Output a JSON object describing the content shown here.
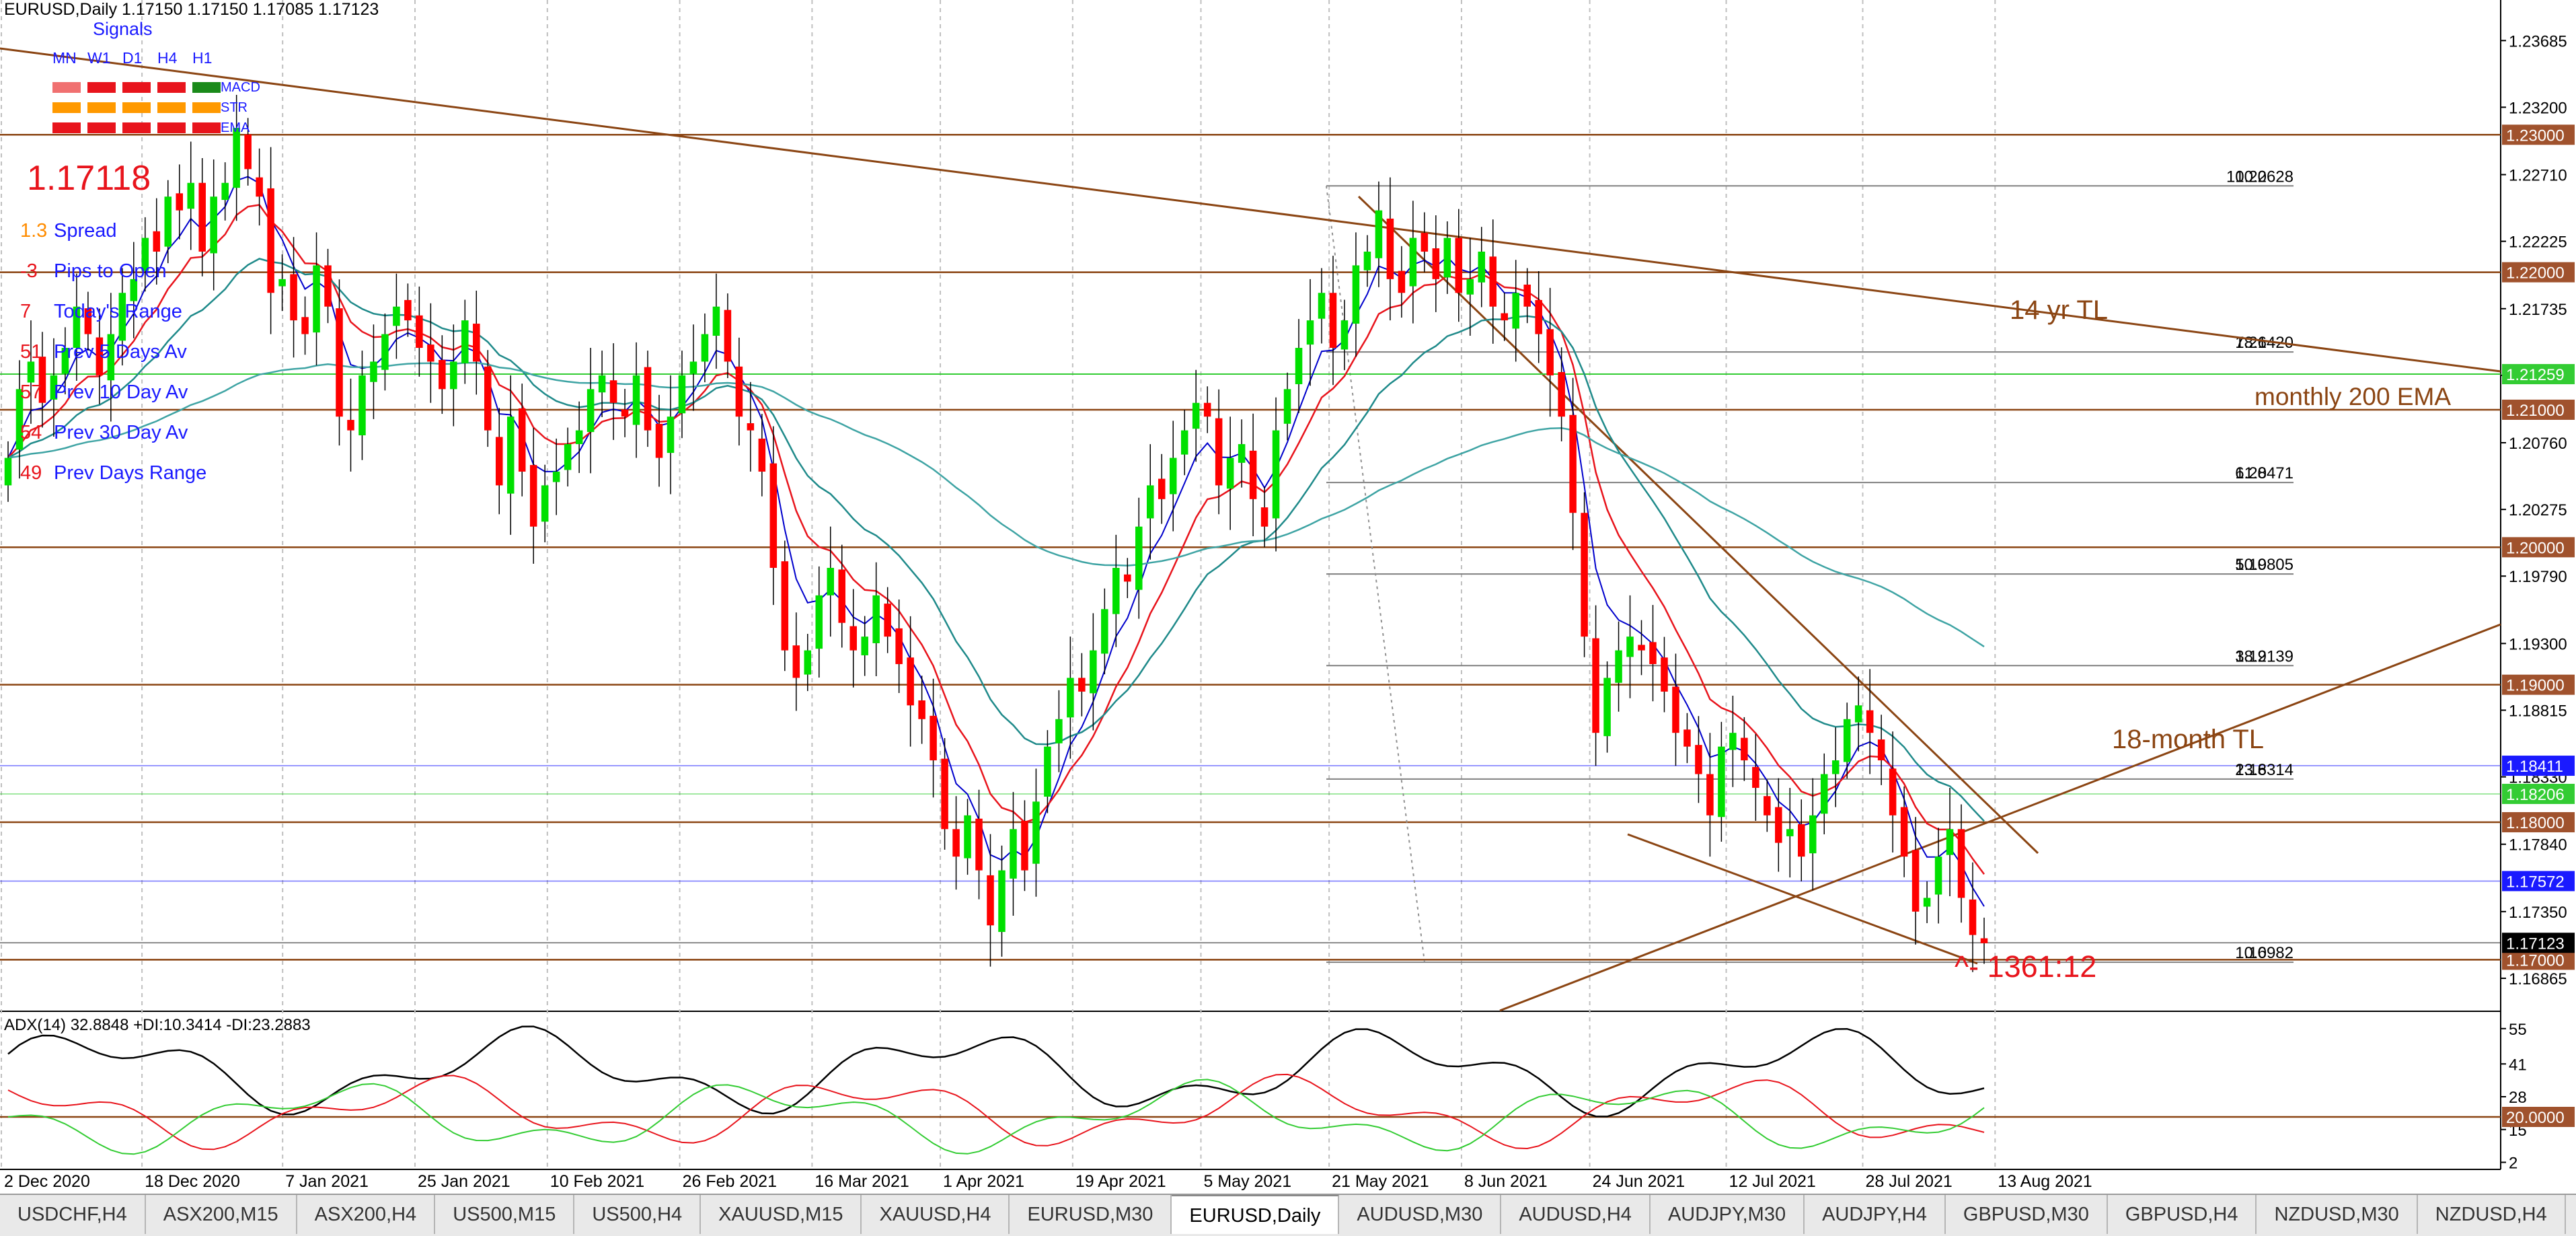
{
  "window": {
    "symbol_info": "EURUSD,Daily  1.17150 1.17150 1.17085 1.17123",
    "adx_info": "ADX(14) 32.8848 +DI:10.3414 -DI:23.2883"
  },
  "signals_panel": {
    "title": "Signals",
    "timeframes": [
      "MN",
      "W1",
      "D1",
      "H4",
      "H1"
    ],
    "rows": [
      {
        "label": "MACD",
        "colors": [
          "#f07070",
          "#e8141c",
          "#e8141c",
          "#e8141c",
          "#1a8a1a"
        ]
      },
      {
        "label": "STR",
        "colors": [
          "#ff9900",
          "#ff9900",
          "#ff9900",
          "#ff9900",
          "#ff9900"
        ]
      },
      {
        "label": "EMA",
        "colors": [
          "#e8141c",
          "#e8141c",
          "#e8141c",
          "#e8141c",
          "#e8141c"
        ]
      }
    ],
    "price": "1.17118",
    "stats": [
      {
        "value": "1.3",
        "label": "Spread",
        "value_color": "#ff8c00"
      },
      {
        "value": "-3",
        "label": "Pips to Open",
        "value_color": "#e8141c"
      },
      {
        "value": "7",
        "label": "Today's Range",
        "value_color": "#e8141c"
      },
      {
        "value": "51",
        "label": "Prev 5 Days Av",
        "value_color": "#e8141c"
      },
      {
        "value": "57",
        "label": "Prev 10 Day Av",
        "value_color": "#e8141c"
      },
      {
        "value": "54",
        "label": "Prev 30 Day Av",
        "value_color": "#e8141c"
      },
      {
        "value": "49",
        "label": "Prev Days Range",
        "value_color": "#e8141c"
      }
    ]
  },
  "annotations": {
    "tl14": "14 yr TL",
    "ema200": "monthly 200 EMA",
    "tl18": "18-month TL",
    "pips": "^- 1361:12"
  },
  "colors": {
    "bull": "#00e000",
    "bear": "#ff0000",
    "level_line": "#8b4513",
    "price_label_bg": "#a0522d",
    "ema_fast": "#0000cc",
    "ema_mid": "#e8141c",
    "ema_slow": "#1f8a8a",
    "ema200": "#3fa4a4"
  },
  "chart_data": {
    "type": "candlestick",
    "symbol": "EURUSD",
    "timeframe": "Daily",
    "ohlc_last": {
      "open": 1.1715,
      "high": 1.1715,
      "low": 1.17085,
      "close": 1.17123
    },
    "x_ticks": [
      "2 Dec 2020",
      "18 Dec 2020",
      "7 Jan 2021",
      "25 Jan 2021",
      "10 Feb 2021",
      "26 Feb 2021",
      "16 Mar 2021",
      "1 Apr 2021",
      "19 Apr 2021",
      "5 May 2021",
      "21 May 2021",
      "8 Jun 2021",
      "24 Jun 2021",
      "12 Jul 2021",
      "28 Jul 2021",
      "13 Aug 2021"
    ],
    "y_ticks": [
      "1.23685",
      "1.23200",
      "1.22710",
      "1.22225",
      "1.21735",
      "1.21250",
      "1.20760",
      "1.20275",
      "1.19790",
      "1.19300",
      "1.18815",
      "1.18330",
      "1.17840",
      "1.17350",
      "1.16865"
    ],
    "ylim": [
      1.1663,
      1.2398
    ],
    "horizontal_levels": [
      {
        "price": 1.23,
        "label": "1.23000"
      },
      {
        "price": 1.22,
        "label": "1.22000"
      },
      {
        "price": 1.21,
        "label": "1.21000"
      },
      {
        "price": 1.2,
        "label": "1.20000"
      },
      {
        "price": 1.19,
        "label": "1.19000"
      },
      {
        "price": 1.18,
        "label": "1.18000"
      },
      {
        "price": 1.17,
        "label": "1.17000"
      }
    ],
    "price_labels": [
      {
        "price": 1.21259,
        "label": "1.21259",
        "color": "#33cc33"
      },
      {
        "price": 1.18411,
        "label": "1.18411",
        "color": "#1a1aff"
      },
      {
        "price": 1.18206,
        "label": "1.18206",
        "color": "#33cc33"
      },
      {
        "price": 1.17572,
        "label": "1.17572",
        "color": "#1a1aff"
      },
      {
        "price": 1.17123,
        "label": "1.17123",
        "color": "#000000"
      }
    ],
    "fibonacci": [
      {
        "level": "100.0",
        "price": 1.22628
      },
      {
        "level": "78.6",
        "price": 1.2142
      },
      {
        "level": "61.8",
        "price": 1.20471
      },
      {
        "level": "50.0",
        "price": 1.19805
      },
      {
        "level": "38.2",
        "price": 1.19139
      },
      {
        "level": "23.6",
        "price": 1.18314
      },
      {
        "level": "0.0",
        "price": 1.16982
      }
    ],
    "close_series": [
      1.2065,
      1.2115,
      1.2135,
      1.2105,
      1.2125,
      1.2145,
      1.2175,
      1.2155,
      1.2125,
      1.2155,
      1.2185,
      1.2195,
      1.2225,
      1.2215,
      1.2255,
      1.2245,
      1.2265,
      1.2215,
      1.2255,
      1.2265,
      1.2305,
      1.2275,
      1.2255,
      1.2185,
      1.2195,
      1.2165,
      1.2155,
      1.2205,
      1.2175,
      1.2095,
      1.2085,
      1.2125,
      1.2135,
      1.2155,
      1.2175,
      1.2165,
      1.2145,
      1.2135,
      1.2115,
      1.2135,
      1.2165,
      1.2135,
      1.2085,
      1.2045,
      1.2095,
      1.2055,
      1.2015,
      1.2045,
      1.2055,
      1.2075,
      1.2085,
      1.2115,
      1.2125,
      1.2105,
      1.2095,
      1.2125,
      1.2085,
      1.2065,
      1.2095,
      1.2125,
      1.2135,
      1.2155,
      1.2175,
      1.2135,
      1.2095,
      1.2085,
      1.2055,
      1.1985,
      1.1925,
      1.1905,
      1.1925,
      1.1965,
      1.1985,
      1.1945,
      1.1925,
      1.1935,
      1.1965,
      1.1935,
      1.1915,
      1.1885,
      1.1875,
      1.1845,
      1.1795,
      1.1775,
      1.1805,
      1.1765,
      1.1725,
      1.1765,
      1.1795,
      1.1765,
      1.1815,
      1.1855,
      1.1875,
      1.1905,
      1.1895,
      1.1925,
      1.1955,
      1.1985,
      1.1975,
      1.2015,
      1.2045,
      1.2035,
      1.2065,
      1.2085,
      1.2105,
      1.2095,
      1.2045,
      1.2065,
      1.2075,
      1.2035,
      1.2015,
      1.2085,
      1.2115,
      1.2145,
      1.2165,
      1.2185,
      1.2145,
      1.2165,
      1.2205,
      1.2215,
      1.2245,
      1.2195,
      1.2185,
      1.2225,
      1.2215,
      1.2195,
      1.2225,
      1.2185,
      1.2195,
      1.2215,
      1.2175,
      1.2165,
      1.2185,
      1.2175,
      1.2155,
      1.2125,
      1.2095,
      1.2025,
      1.1935,
      1.1865,
      1.1905,
      1.1925,
      1.1935,
      1.1925,
      1.1915,
      1.1895,
      1.1865,
      1.1855,
      1.1835,
      1.1805,
      1.1855,
      1.1865,
      1.1845,
      1.1825,
      1.1805,
      1.1785,
      1.1795,
      1.1775,
      1.1805,
      1.1835,
      1.1845,
      1.1875,
      1.1885,
      1.1865,
      1.1845,
      1.1805,
      1.1775,
      1.1735,
      1.1745,
      1.1775,
      1.1795,
      1.1745,
      1.1718,
      1.1712
    ]
  }
}
